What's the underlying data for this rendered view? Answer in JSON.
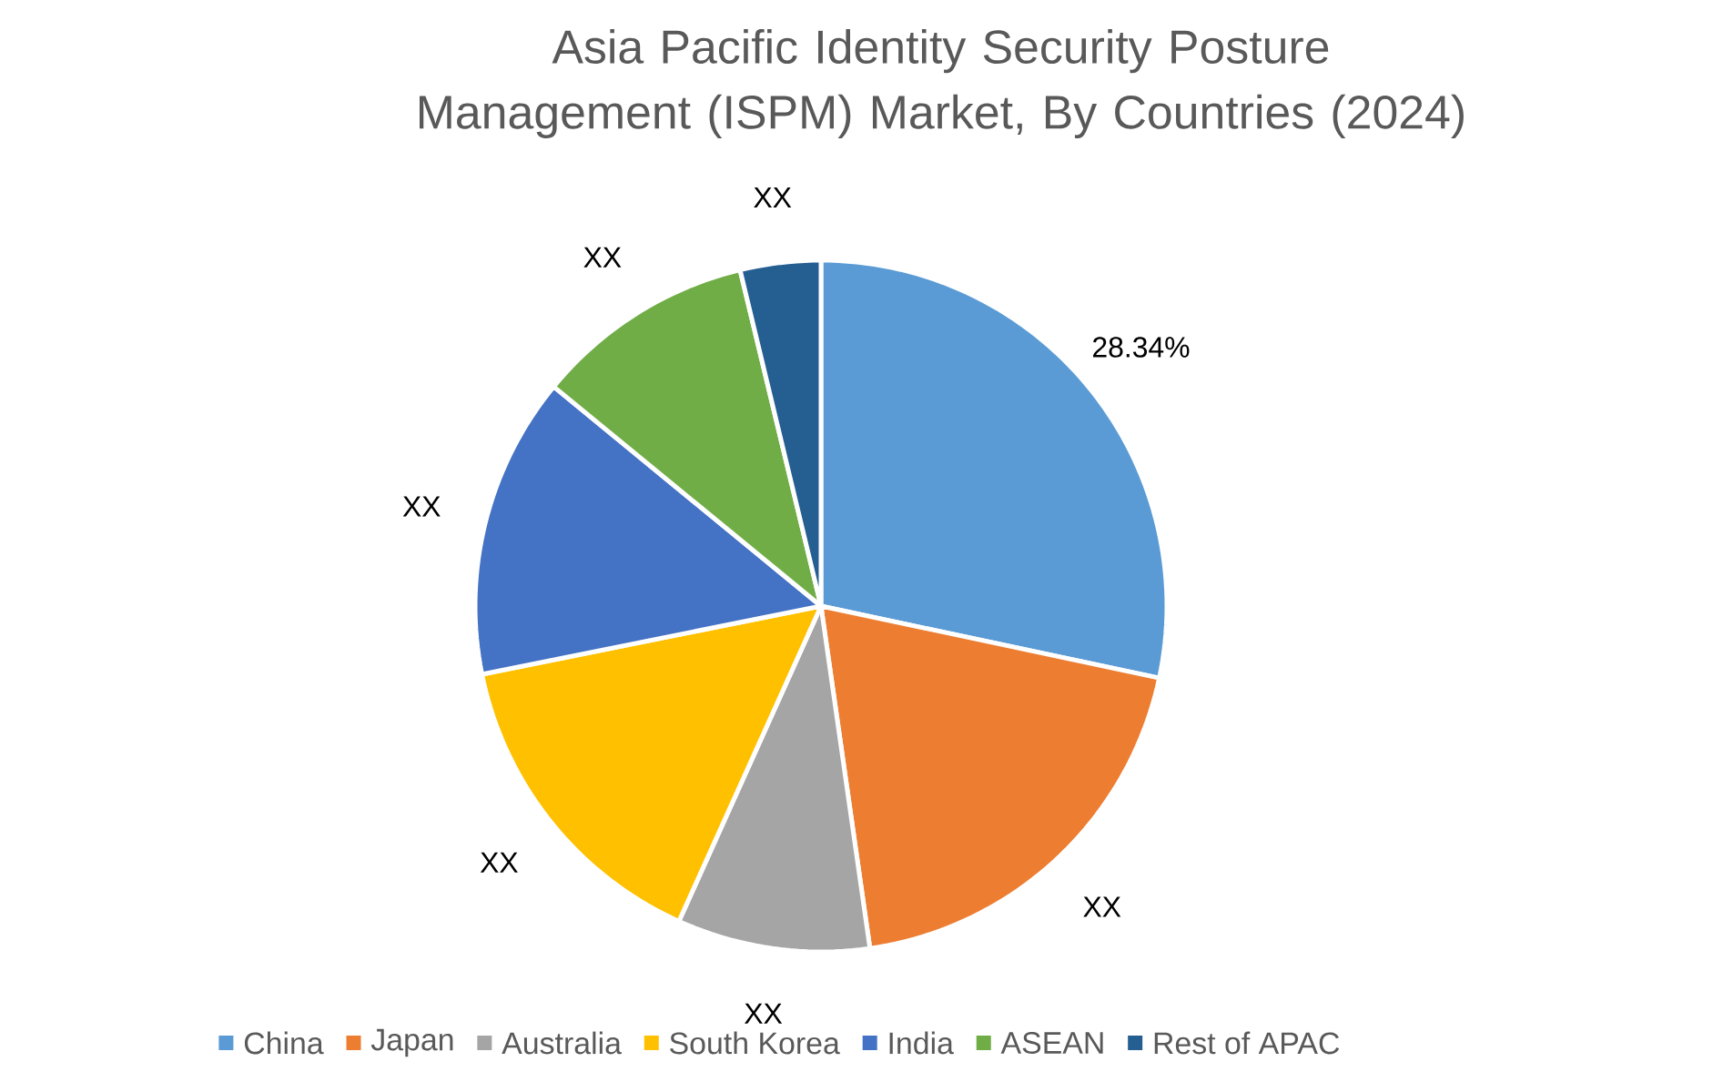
{
  "chart_data": {
    "type": "pie",
    "title": "Asia Pacific Identity Security Posture Management (ISPM) Market, By Countries (2024)",
    "categories": [
      "China",
      "Japan",
      "Australia",
      "South Korea",
      "India",
      "ASEAN",
      "Rest of APAC"
    ],
    "values": [
      28.34,
      19.4,
      9.0,
      15.1,
      14.1,
      10.3,
      3.76
    ],
    "colors": [
      "#5b9bd5",
      "#ed7d31",
      "#a5a5a5",
      "#ffc000",
      "#4472c4",
      "#70ad47",
      "#255e91"
    ],
    "value_labels": [
      "28.34%",
      "XX",
      "XX",
      "XX",
      "XX",
      "XX",
      "XX"
    ],
    "legend": "bottom"
  }
}
